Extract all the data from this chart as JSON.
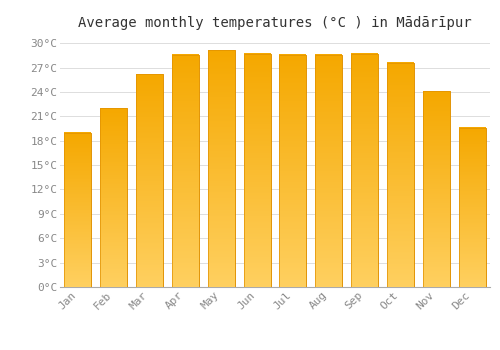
{
  "title": "Average monthly temperatures (°C ) in Mādārīpur",
  "months": [
    "Jan",
    "Feb",
    "Mar",
    "Apr",
    "May",
    "Jun",
    "Jul",
    "Aug",
    "Sep",
    "Oct",
    "Nov",
    "Dec"
  ],
  "temperatures": [
    19.0,
    22.0,
    26.2,
    28.6,
    29.1,
    28.7,
    28.6,
    28.6,
    28.7,
    27.6,
    24.1,
    19.6
  ],
  "bar_color_top": "#F5A800",
  "bar_color_bottom": "#FFD060",
  "bar_edge_color": "#E09000",
  "ylim": [
    0,
    31
  ],
  "yticks": [
    0,
    3,
    6,
    9,
    12,
    15,
    18,
    21,
    24,
    27,
    30
  ],
  "background_color": "#FFFFFF",
  "grid_color": "#DDDDDD",
  "title_fontsize": 10,
  "tick_fontsize": 8,
  "label_color": "#888888",
  "title_color": "#333333"
}
